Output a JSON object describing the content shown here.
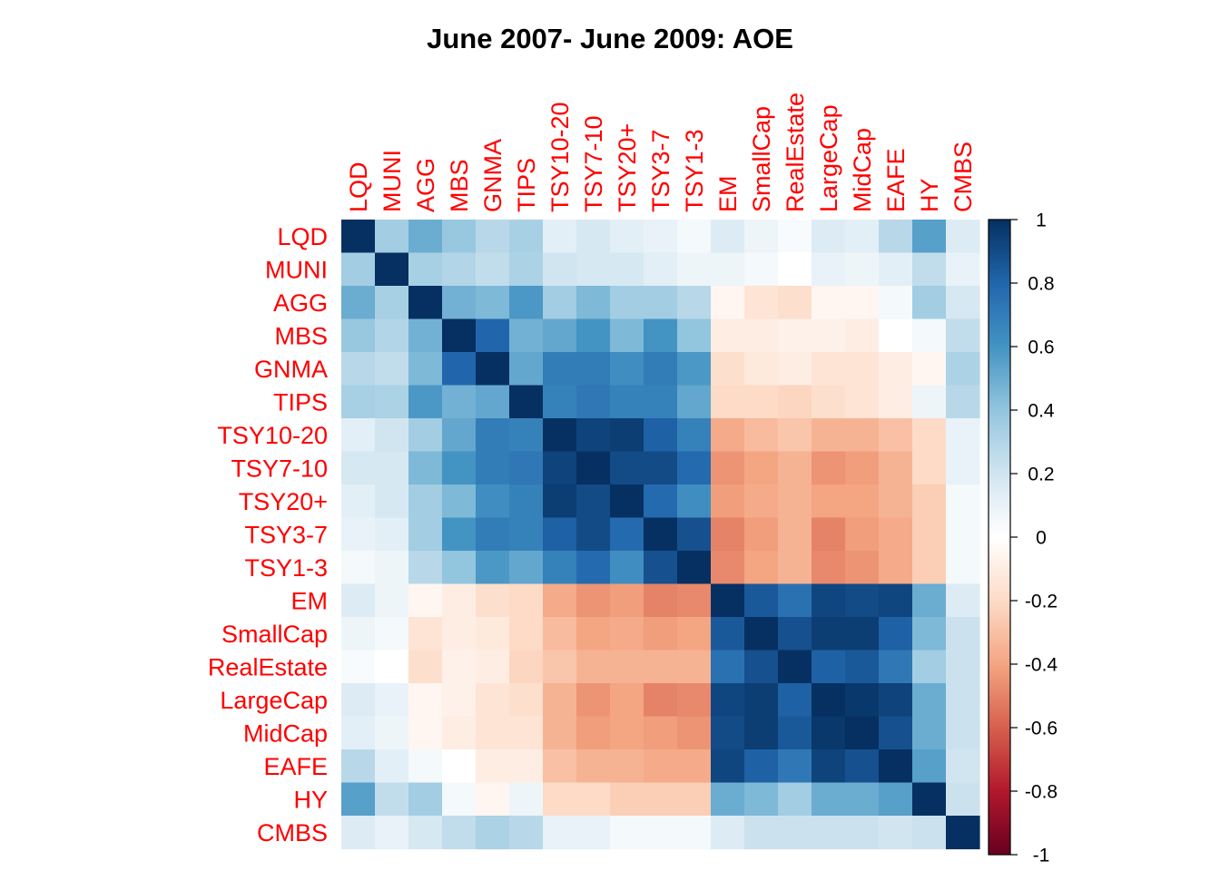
{
  "chart_data": {
    "type": "heatmap",
    "title": "June 2007- June 2009: AOE",
    "row_labels": [
      "LQD",
      "MUNI",
      "AGG",
      "MBS",
      "GNMA",
      "TIPS",
      "TSY10-20",
      "TSY7-10",
      "TSY20+",
      "TSY3-7",
      "TSY1-3",
      "EM",
      "SmallCap",
      "RealEstate",
      "LargeCap",
      "MidCap",
      "EAFE",
      "HY",
      "CMBS"
    ],
    "col_labels": [
      "LQD",
      "MUNI",
      "AGG",
      "MBS",
      "GNMA",
      "TIPS",
      "TSY10-20",
      "TSY7-10",
      "TSY20+",
      "TSY3-7",
      "TSY1-3",
      "EM",
      "SmallCap",
      "RealEstate",
      "LargeCap",
      "MidCap",
      "EAFE",
      "HY",
      "CMBS"
    ],
    "values": [
      [
        1.0,
        0.35,
        0.5,
        0.38,
        0.28,
        0.33,
        0.12,
        0.18,
        0.12,
        0.1,
        0.05,
        0.15,
        0.08,
        0.03,
        0.15,
        0.12,
        0.28,
        0.55,
        0.15
      ],
      [
        0.35,
        1.0,
        0.33,
        0.3,
        0.25,
        0.32,
        0.2,
        0.18,
        0.18,
        0.12,
        0.08,
        0.08,
        0.05,
        0.0,
        0.1,
        0.08,
        0.12,
        0.25,
        0.1
      ],
      [
        0.5,
        0.33,
        1.0,
        0.48,
        0.45,
        0.58,
        0.35,
        0.45,
        0.35,
        0.35,
        0.28,
        -0.05,
        -0.15,
        -0.18,
        -0.05,
        -0.05,
        0.05,
        0.35,
        0.18
      ],
      [
        0.38,
        0.3,
        0.48,
        1.0,
        0.8,
        0.48,
        0.52,
        0.6,
        0.45,
        0.6,
        0.4,
        -0.1,
        -0.1,
        -0.08,
        -0.08,
        -0.1,
        0.0,
        0.05,
        0.25
      ],
      [
        0.28,
        0.25,
        0.45,
        0.8,
        1.0,
        0.52,
        0.7,
        0.7,
        0.62,
        0.7,
        0.58,
        -0.18,
        -0.12,
        -0.1,
        -0.15,
        -0.15,
        -0.1,
        -0.05,
        0.32
      ],
      [
        0.33,
        0.32,
        0.58,
        0.48,
        0.52,
        1.0,
        0.68,
        0.72,
        0.68,
        0.68,
        0.52,
        -0.2,
        -0.2,
        -0.22,
        -0.18,
        -0.15,
        -0.1,
        0.08,
        0.28
      ],
      [
        0.12,
        0.2,
        0.35,
        0.52,
        0.7,
        0.68,
        1.0,
        0.93,
        0.95,
        0.82,
        0.68,
        -0.38,
        -0.32,
        -0.28,
        -0.35,
        -0.35,
        -0.3,
        -0.2,
        0.1
      ],
      [
        0.18,
        0.18,
        0.45,
        0.6,
        0.7,
        0.72,
        0.93,
        1.0,
        0.9,
        0.9,
        0.78,
        -0.45,
        -0.4,
        -0.35,
        -0.45,
        -0.42,
        -0.35,
        -0.2,
        0.1
      ],
      [
        0.12,
        0.18,
        0.35,
        0.45,
        0.62,
        0.68,
        0.95,
        0.9,
        1.0,
        0.78,
        0.62,
        -0.42,
        -0.38,
        -0.35,
        -0.4,
        -0.4,
        -0.35,
        -0.25,
        0.05
      ],
      [
        0.1,
        0.12,
        0.35,
        0.6,
        0.7,
        0.68,
        0.82,
        0.9,
        0.78,
        1.0,
        0.88,
        -0.5,
        -0.42,
        -0.35,
        -0.5,
        -0.42,
        -0.38,
        -0.25,
        0.05
      ],
      [
        0.05,
        0.08,
        0.28,
        0.4,
        0.58,
        0.52,
        0.68,
        0.78,
        0.62,
        0.88,
        1.0,
        -0.48,
        -0.4,
        -0.35,
        -0.48,
        -0.45,
        -0.38,
        -0.25,
        0.05
      ],
      [
        0.15,
        0.08,
        -0.05,
        -0.1,
        -0.18,
        -0.2,
        -0.38,
        -0.45,
        -0.42,
        -0.5,
        -0.48,
        1.0,
        0.85,
        0.75,
        0.92,
        0.9,
        0.92,
        0.5,
        0.15
      ],
      [
        0.08,
        0.05,
        -0.15,
        -0.1,
        -0.12,
        -0.2,
        -0.32,
        -0.4,
        -0.38,
        -0.42,
        -0.4,
        0.85,
        1.0,
        0.88,
        0.95,
        0.95,
        0.82,
        0.45,
        0.22
      ],
      [
        0.03,
        0.0,
        -0.18,
        -0.08,
        -0.1,
        -0.22,
        -0.28,
        -0.35,
        -0.35,
        -0.35,
        -0.35,
        0.75,
        0.88,
        1.0,
        0.82,
        0.85,
        0.72,
        0.35,
        0.22
      ],
      [
        0.15,
        0.1,
        -0.05,
        -0.08,
        -0.15,
        -0.18,
        -0.35,
        -0.45,
        -0.4,
        -0.5,
        -0.48,
        0.92,
        0.95,
        0.82,
        1.0,
        0.97,
        0.93,
        0.5,
        0.22
      ],
      [
        0.12,
        0.08,
        -0.05,
        -0.1,
        -0.15,
        -0.15,
        -0.35,
        -0.42,
        -0.4,
        -0.42,
        -0.45,
        0.9,
        0.95,
        0.85,
        0.97,
        1.0,
        0.88,
        0.5,
        0.22
      ],
      [
        0.28,
        0.12,
        0.05,
        0.0,
        -0.1,
        -0.1,
        -0.3,
        -0.35,
        -0.35,
        -0.38,
        -0.38,
        0.92,
        0.82,
        0.72,
        0.93,
        0.88,
        1.0,
        0.55,
        0.2
      ],
      [
        0.55,
        0.25,
        0.35,
        0.05,
        -0.05,
        0.08,
        -0.2,
        -0.2,
        -0.25,
        -0.25,
        -0.25,
        0.5,
        0.45,
        0.35,
        0.5,
        0.5,
        0.55,
        1.0,
        0.22
      ],
      [
        0.15,
        0.1,
        0.18,
        0.25,
        0.32,
        0.28,
        0.1,
        0.1,
        0.05,
        0.05,
        0.05,
        0.15,
        0.22,
        0.22,
        0.22,
        0.22,
        0.2,
        0.22,
        1.0
      ]
    ],
    "colorbar": {
      "ticks": [
        1,
        0.8,
        0.6,
        0.4,
        0.2,
        0,
        -0.2,
        -0.4,
        -0.6,
        -0.8,
        -1
      ],
      "tick_labels": [
        "1",
        "0.8",
        "0.6",
        "0.4",
        "0.2",
        "0",
        "-0.2",
        "-0.4",
        "-0.6",
        "-0.8",
        "-1"
      ],
      "range": [
        -1,
        1
      ]
    },
    "colors": {
      "scale": [
        "#67001f",
        "#b2182b",
        "#d6604d",
        "#f4a582",
        "#fddbc7",
        "#ffffff",
        "#d1e5f0",
        "#92c5de",
        "#4393c3",
        "#2166ac",
        "#053061"
      ],
      "label": "#ff0000"
    }
  }
}
